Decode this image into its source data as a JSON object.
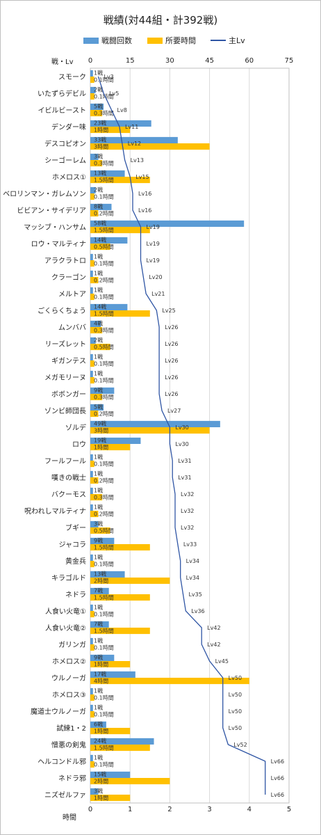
{
  "chart_data": {
    "type": "bar",
    "title": "戦績(対44組・計392戦)",
    "legend": {
      "position": "top",
      "battles": "戦闘回数",
      "hours": "所要時間",
      "level": "主Lv"
    },
    "top_axis": {
      "label": "戦・Lv",
      "ticks": [
        0,
        15,
        30,
        45,
        60,
        75
      ],
      "range": [
        0,
        75
      ]
    },
    "bottom_axis": {
      "label": "時間",
      "ticks": [
        0,
        1,
        2,
        3,
        4,
        5
      ],
      "range": [
        0,
        5
      ]
    },
    "gridlines": true,
    "colors": {
      "battles": "#5b9bd5",
      "hours": "#ffc000",
      "level": "#2f55a4",
      "grid": "#d9d9d9"
    },
    "categories": [
      "スモーク",
      "いたずらデビル",
      "イビルビースト",
      "デンダー味",
      "デスコピオン",
      "シーゴーレム",
      "ホメロス①",
      "ベロリンマン・ガレムソン",
      "ビビアン・サイデリア",
      "マッシブ・ハンサム",
      "ロウ・マルティナ",
      "アラクラトロ",
      "クラーゴン",
      "メルトア",
      "ごくらくちょう",
      "ムンババ",
      "リーズレット",
      "ギガンテス",
      "メガモリーヌ",
      "ボボンガー",
      "ゾンビ師団長",
      "ゾルデ",
      "ロウ",
      "フールフール",
      "嘆きの戦士",
      "バクーモス",
      "呪われしマルティナ",
      "ブギー",
      "ジャコラ",
      "黄金兵",
      "キラゴルド",
      "ネドラ",
      "人食い火竜①",
      "人食い火竜②",
      "ガリンガ",
      "ホメロス②",
      "ウルノーガ",
      "ホメロス③",
      "魔道士ウルノーガ",
      "試練1・2",
      "憎悪の剣鬼",
      "ヘルコンドル邪",
      "ネドラ邪",
      "ニズゼルファ"
    ],
    "battles": [
      1,
      2,
      5,
      23,
      33,
      3,
      13,
      2,
      8,
      58,
      14,
      1,
      1,
      1,
      14,
      4,
      2,
      1,
      1,
      9,
      5,
      49,
      19,
      1,
      1,
      1,
      1,
      3,
      9,
      1,
      13,
      7,
      1,
      7,
      1,
      9,
      17,
      1,
      1,
      6,
      24,
      1,
      15,
      3
    ],
    "battle_labels": [
      "1戦",
      "2戦",
      "5戦",
      "23戦",
      "33戦",
      "3戦",
      "13戦",
      "2戦",
      "8戦",
      "58戦",
      "14戦",
      "1戦",
      "1戦",
      "1戦",
      "14戦",
      "4戦",
      "2戦",
      "1戦",
      "1戦",
      "9戦",
      "5戦",
      "49戦",
      "19戦",
      "1戦",
      "1戦",
      "1戦",
      "1戦",
      "3戦",
      "9戦",
      "1戦",
      "13戦",
      "7戦",
      "1戦",
      "7戦",
      "1戦",
      "9戦",
      "17戦",
      "1戦",
      "1戦",
      "6戦",
      "24戦",
      "1戦",
      "15戦",
      "3戦"
    ],
    "hours": [
      0.1,
      0.1,
      0.3,
      1,
      3,
      0.3,
      1.5,
      0.1,
      0.2,
      1.5,
      0.5,
      0.1,
      0.2,
      0.1,
      1.5,
      0.3,
      0.5,
      0.1,
      0.1,
      0.3,
      0.2,
      3,
      1,
      0.1,
      0.2,
      0.3,
      0.2,
      0.5,
      1.5,
      0.1,
      2,
      1.5,
      0.1,
      1.5,
      0.1,
      1,
      4,
      0.1,
      0.1,
      1,
      1.5,
      0.1,
      2,
      1
    ],
    "hour_labels": [
      "0.1時間",
      "0.1時間",
      "0.3時間",
      "1時間",
      "3時間",
      "0.3時間",
      "1.5時間",
      "0.1時間",
      "0.2時間",
      "1.5時間",
      "0.5時間",
      "0.1時間",
      "0.2時間",
      "0.1時間",
      "1.5時間",
      "0.3時間",
      "0.5時間",
      "0.1時間",
      "0.1時間",
      "0.3時間",
      "0.2時間",
      "3時間",
      "1時間",
      "0.1時間",
      "0.2時間",
      "0.3時間",
      "0.2時間",
      "0.5時間",
      "1.5時間",
      "0.1時間",
      "2時間",
      "1.5時間",
      "0.1時間",
      "1.5時間",
      "0.1時間",
      "1時間",
      "4時間",
      "0.1時間",
      "0.1時間",
      "1時間",
      "1.5時間",
      "0.1時間",
      "2時間",
      "1時間"
    ],
    "levels": [
      3,
      5,
      8,
      11,
      12,
      13,
      15,
      16,
      16,
      19,
      19,
      19,
      20,
      21,
      25,
      26,
      26,
      26,
      26,
      26,
      27,
      30,
      30,
      31,
      31,
      32,
      32,
      32,
      33,
      34,
      34,
      35,
      36,
      42,
      42,
      45,
      50,
      50,
      50,
      50,
      52,
      66,
      66,
      66
    ],
    "level_labels": [
      "Lv3",
      "Lv5",
      "Lv8",
      "Lv11",
      "Lv12",
      "Lv13",
      "Lv15",
      "Lv16",
      "Lv16",
      "Lv19",
      "Lv19",
      "Lv19",
      "Lv20",
      "Lv21",
      "Lv25",
      "Lv26",
      "Lv26",
      "Lv26",
      "Lv26",
      "Lv26",
      "Lv27",
      "Lv30",
      "Lv30",
      "Lv31",
      "Lv31",
      "Lv32",
      "Lv32",
      "Lv32",
      "Lv33",
      "Lv34",
      "Lv34",
      "Lv35",
      "Lv36",
      "Lv42",
      "Lv42",
      "Lv45",
      "Lv50",
      "Lv50",
      "Lv50",
      "Lv50",
      "Lv52",
      "Lv66",
      "Lv66",
      "Lv66"
    ]
  }
}
